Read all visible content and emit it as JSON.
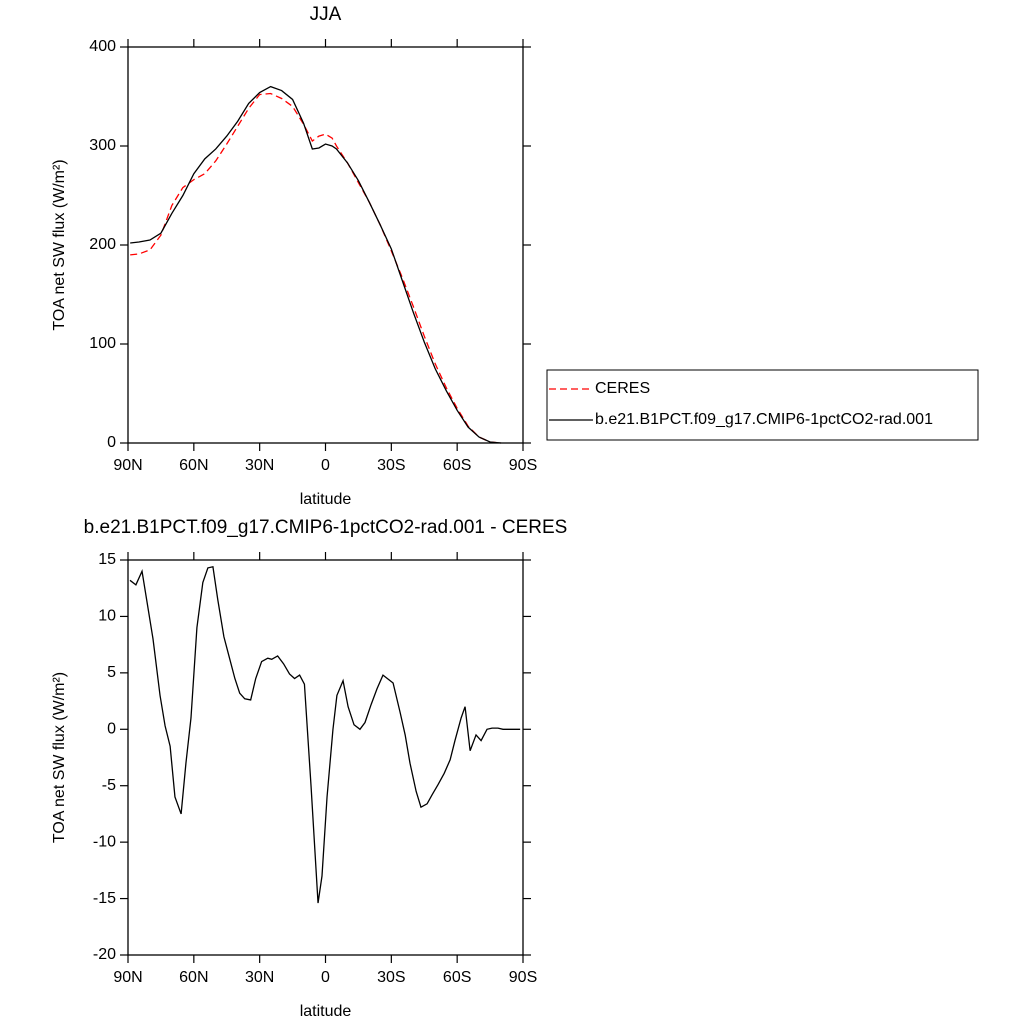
{
  "chart_data": [
    {
      "type": "line",
      "title": "JJA",
      "xlabel": "latitude",
      "ylabel": "TOA net SW flux (W/m²)",
      "x": [
        89,
        85,
        80,
        75,
        70,
        65,
        60,
        55,
        50,
        45,
        40,
        35,
        30,
        25,
        20,
        15,
        10,
        6,
        3,
        0,
        -3,
        -5,
        -10,
        -15,
        -20,
        -25,
        -30,
        -35,
        -40,
        -45,
        -50,
        -55,
        -60,
        -65,
        -70,
        -75,
        -80
      ],
      "series": [
        {
          "name": "CERES",
          "color": "#ff0000",
          "dashed": true,
          "values": [
            190,
            191,
            195,
            210,
            240,
            258,
            266,
            272,
            285,
            302,
            320,
            338,
            352,
            353,
            348,
            340,
            322,
            305,
            310,
            312,
            308,
            300,
            283,
            263,
            243,
            220,
            194,
            167,
            138,
            108,
            80,
            56,
            35,
            17,
            6,
            1,
            0
          ]
        },
        {
          "name": "b.e21.B1PCT.f09_g17.CMIP6-1pctCO2-rad.001",
          "color": "#000000",
          "dashed": false,
          "values": [
            202,
            203,
            205,
            212,
            232,
            250,
            272,
            287,
            297,
            310,
            325,
            343,
            354,
            360,
            356,
            347,
            323,
            297,
            298,
            302,
            300,
            297,
            283,
            265,
            243,
            220,
            196,
            164,
            132,
            102,
            75,
            53,
            33,
            16,
            6,
            1,
            0
          ]
        }
      ],
      "xlim": [
        90,
        -90
      ],
      "xticks": [
        {
          "value": 90,
          "label": "90N"
        },
        {
          "value": 60,
          "label": "60N"
        },
        {
          "value": 30,
          "label": "30N"
        },
        0,
        {
          "value": -30,
          "label": "30S"
        },
        {
          "value": -60,
          "label": "60S"
        },
        {
          "value": -90,
          "label": "90S"
        }
      ],
      "ylim": [
        0,
        400
      ],
      "yticks": [
        0,
        100,
        200,
        300,
        400
      ],
      "legend": "right"
    },
    {
      "type": "line",
      "title": "b.e21.B1PCT.f09_g17.CMIP6-1pctCO2-rad.001 - CERES",
      "xlabel": "latitude",
      "ylabel": "TOA net SW flux (W/m²)",
      "x": [
        89.1,
        86.4,
        83.6,
        78.6,
        75.4,
        73.1,
        70.8,
        68.6,
        65.8,
        63.6,
        61.3,
        58.6,
        55.9,
        53.6,
        51.3,
        49.1,
        46.3,
        44,
        41.3,
        39.1,
        36.8,
        34.1,
        31.8,
        29.1,
        26.3,
        24.5,
        21.8,
        19.1,
        16.4,
        14.1,
        11.8,
        9.6,
        6.6,
        3.4,
        1.6,
        -0.7,
        -3.4,
        -5.2,
        -8,
        -10.3,
        -13,
        -15.7,
        -18,
        -20.8,
        -23.5,
        -26.2,
        -30.8,
        -34,
        -36.3,
        -38.5,
        -41.3,
        -43.5,
        -46.3,
        -48.6,
        -51.3,
        -54.1,
        -56.8,
        -59,
        -61.8,
        -63.6,
        -65.9,
        -68.6,
        -70.9,
        -73.6,
        -75.9,
        -78.6,
        -80.9,
        -84.1,
        -88.7
      ],
      "series": [
        {
          "color": "#000000",
          "dashed": false,
          "values": [
            13.2,
            12.8,
            14.0,
            8,
            3,
            0.3,
            -1.5,
            -6,
            -7.5,
            -3,
            1,
            9,
            13,
            14.3,
            14.4,
            11.5,
            8.2,
            6.5,
            4.5,
            3.2,
            2.7,
            2.6,
            4.5,
            6,
            6.3,
            6.2,
            6.5,
            5.8,
            4.9,
            4.5,
            4.8,
            4,
            -5,
            -15.4,
            -13,
            -6,
            0,
            3,
            4.3,
            2,
            0.4,
            0,
            0.6,
            2.2,
            3.6,
            4.8,
            4.1,
            1.5,
            -0.5,
            -3,
            -5.5,
            -6.9,
            -6.6,
            -5.8,
            -4.9,
            -3.9,
            -2.7,
            -1,
            1,
            2,
            -1.9,
            -0.5,
            -1,
            0,
            0.1,
            0.1,
            0,
            0,
            0
          ]
        }
      ],
      "xlim": [
        90,
        -90
      ],
      "xticks": [
        {
          "value": 90,
          "label": "90N"
        },
        {
          "value": 60,
          "label": "60N"
        },
        {
          "value": 30,
          "label": "30N"
        },
        0,
        {
          "value": -30,
          "label": "30S"
        },
        {
          "value": -60,
          "label": "60S"
        },
        {
          "value": -90,
          "label": "90S"
        }
      ],
      "ylim": [
        -20,
        15
      ],
      "yticks": [
        -20,
        -15,
        -10,
        -5,
        0,
        5,
        10,
        15
      ]
    }
  ]
}
